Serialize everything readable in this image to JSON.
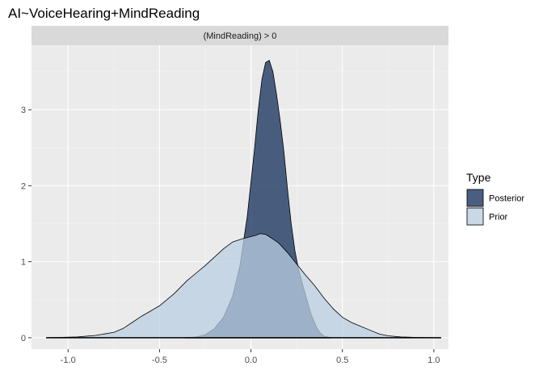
{
  "chart_data": {
    "type": "area",
    "title": "AI~VoiceHearing+MindReading",
    "facet_label": "(MindReading) > 0",
    "xlabel": "",
    "ylabel": "",
    "xlim": [
      -1.2,
      1.08
    ],
    "ylim": [
      -0.15,
      3.85
    ],
    "x_ticks": [
      -1.0,
      -0.5,
      0.0,
      0.5,
      1.0
    ],
    "x_tick_labels": [
      "-1.0",
      "-0.5",
      "0.0",
      "0.5",
      "1.0"
    ],
    "y_ticks": [
      0,
      1,
      2,
      3
    ],
    "y_tick_labels": [
      "0",
      "1",
      "2",
      "3"
    ],
    "grid": true,
    "legend_position": "right",
    "legend_title": "Type",
    "series": [
      {
        "name": "Posterior",
        "color": "#1f3a62",
        "opacity": 0.8,
        "x": [
          -0.36,
          -0.3,
          -0.25,
          -0.2,
          -0.15,
          -0.1,
          -0.06,
          -0.02,
          0.0,
          0.02,
          0.04,
          0.06,
          0.08,
          0.1,
          0.12,
          0.14,
          0.16,
          0.18,
          0.2,
          0.22,
          0.24,
          0.26,
          0.28,
          0.3,
          0.33,
          0.36,
          0.38,
          0.4,
          0.44
        ],
        "y": [
          0.0,
          0.01,
          0.04,
          0.12,
          0.27,
          0.55,
          0.95,
          1.6,
          2.05,
          2.5,
          3.0,
          3.4,
          3.62,
          3.65,
          3.5,
          3.2,
          2.85,
          2.45,
          1.95,
          1.5,
          1.15,
          0.9,
          0.72,
          0.55,
          0.3,
          0.13,
          0.06,
          0.02,
          0.0
        ]
      },
      {
        "name": "Prior",
        "color": "#b9cfe2",
        "opacity": 0.75,
        "x": [
          -1.12,
          -0.95,
          -0.85,
          -0.75,
          -0.7,
          -0.65,
          -0.6,
          -0.5,
          -0.42,
          -0.35,
          -0.3,
          -0.25,
          -0.2,
          -0.15,
          -0.1,
          -0.05,
          0.0,
          0.03,
          0.05,
          0.08,
          0.1,
          0.15,
          0.2,
          0.25,
          0.3,
          0.35,
          0.4,
          0.45,
          0.5,
          0.55,
          0.6,
          0.65,
          0.7,
          0.75,
          0.82,
          0.9,
          1.04
        ],
        "y": [
          0.0,
          0.01,
          0.03,
          0.07,
          0.12,
          0.2,
          0.28,
          0.42,
          0.58,
          0.75,
          0.85,
          0.95,
          1.06,
          1.17,
          1.26,
          1.3,
          1.33,
          1.35,
          1.37,
          1.36,
          1.33,
          1.25,
          1.12,
          0.97,
          0.82,
          0.68,
          0.52,
          0.38,
          0.27,
          0.2,
          0.15,
          0.1,
          0.05,
          0.025,
          0.01,
          0.004,
          0.0
        ]
      }
    ]
  }
}
